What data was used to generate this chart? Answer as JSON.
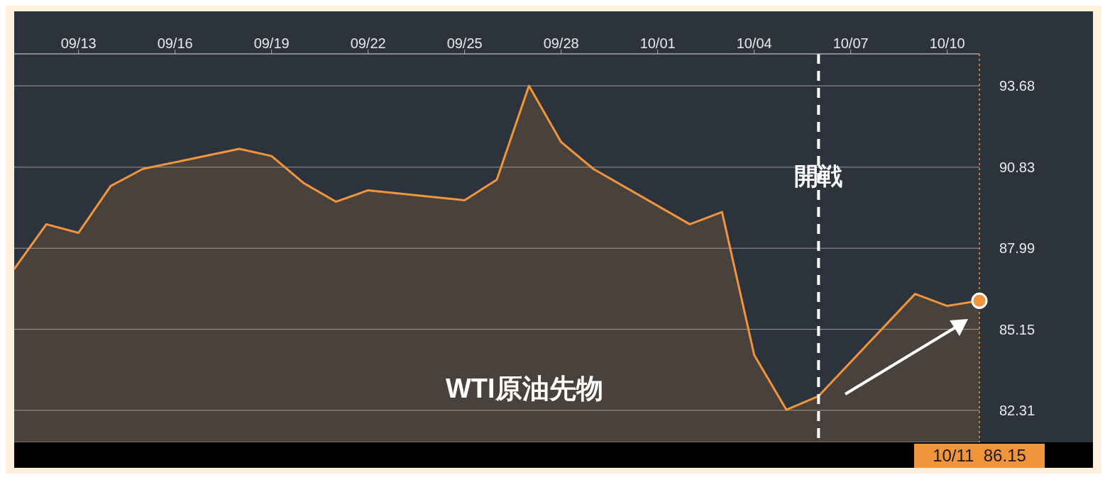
{
  "chart_data": {
    "type": "area",
    "x": [
      "--09-11",
      "--09-12",
      "--09-13",
      "--09-14",
      "--09-15",
      "--09-18",
      "--09-19",
      "--09-20",
      "--09-21",
      "--09-22",
      "--09-25",
      "--09-26",
      "--09-27",
      "--09-28",
      "--09-29",
      "--10-02",
      "--10-03",
      "--10-04",
      "--10-05",
      "--10-06",
      "--10-09",
      "--10-10",
      "--10-11"
    ],
    "series": [
      {
        "name": "WTI原油先物",
        "color": "#f0953b",
        "values": [
          87.26,
          88.83,
          88.53,
          90.17,
          90.77,
          91.47,
          91.22,
          90.27,
          89.62,
          90.02,
          89.67,
          90.39,
          93.68,
          91.71,
          90.77,
          88.83,
          89.26,
          84.25,
          82.33,
          82.81,
          86.39,
          85.97,
          86.15
        ]
      }
    ],
    "xlim": [
      "--09-11",
      "--10-11"
    ],
    "xticks": [
      {
        "value": "--09-13",
        "label": "09/13"
      },
      {
        "value": "--09-16",
        "label": "09/16"
      },
      {
        "value": "--09-19",
        "label": "09/19"
      },
      {
        "value": "--09-22",
        "label": "09/22"
      },
      {
        "value": "--09-25",
        "label": "09/25"
      },
      {
        "value": "--09-28",
        "label": "09/28"
      },
      {
        "value": "--10-01",
        "label": "10/01"
      },
      {
        "value": "--10-04",
        "label": "10/04"
      },
      {
        "value": "--10-07",
        "label": "10/07"
      },
      {
        "value": "--10-10",
        "label": "10/10"
      }
    ],
    "ylim": [
      81.19,
      94.8
    ],
    "yticks": [
      82.31,
      85.15,
      87.99,
      90.83,
      93.68
    ],
    "grid": "y",
    "ref_lines": [
      {
        "axis": "x",
        "value": "--10-06",
        "label": "開戦",
        "color": "#ffffff",
        "line_style": "dashed"
      },
      {
        "axis": "x",
        "value": "--10-11",
        "label": null,
        "color": "#f0953b",
        "line_style": "dotted"
      }
    ],
    "annotations": [
      "10/11  86.15"
    ]
  }
}
